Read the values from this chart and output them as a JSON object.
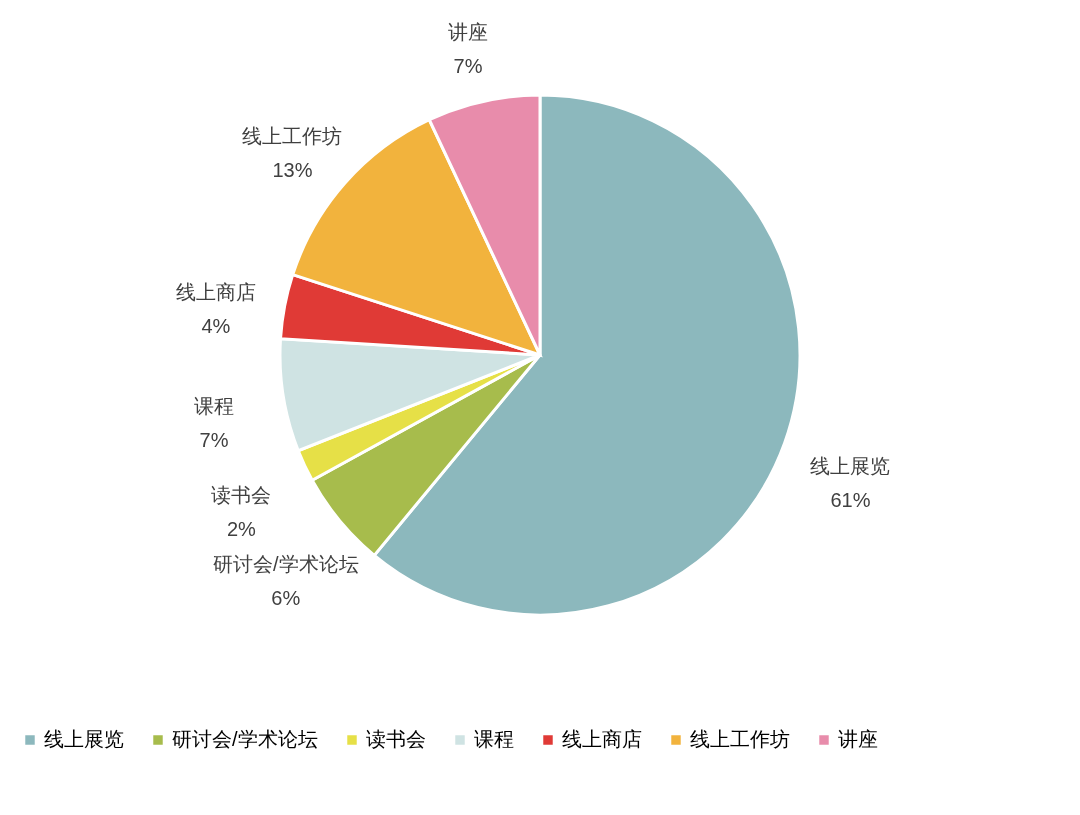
{
  "chart_data": {
    "type": "pie",
    "categories": [
      "线上展览",
      "研讨会/学术论坛",
      "读书会",
      "课程",
      "线上商店",
      "线上工作坊",
      "讲座"
    ],
    "values": [
      61,
      6,
      2,
      7,
      4,
      13,
      7
    ],
    "value_labels": [
      "61%",
      "6%",
      "2%",
      "7%",
      "4%",
      "13%",
      "7%"
    ],
    "colors": [
      "#8cb8bd",
      "#a7bc4c",
      "#e6e047",
      "#cfe3e3",
      "#e03a36",
      "#f2b33d",
      "#e88cab"
    ],
    "legend": "bottom"
  }
}
